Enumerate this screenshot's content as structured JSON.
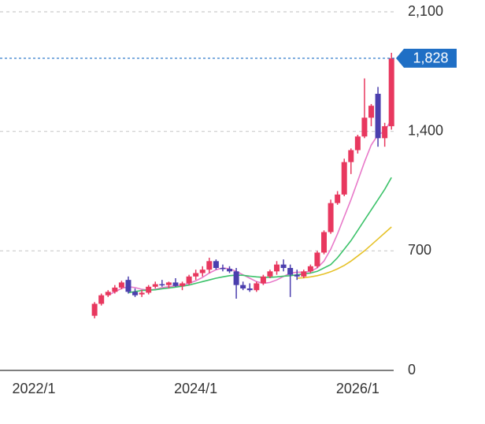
{
  "chart_data": {
    "type": "candlestick",
    "categories": [
      "2022/10",
      "2022/11",
      "2022/12",
      "2023/1",
      "2023/2",
      "2023/3",
      "2023/4",
      "2023/5",
      "2023/6",
      "2023/7",
      "2023/8",
      "2023/9",
      "2023/10",
      "2023/11",
      "2023/12",
      "2024/1",
      "2024/2",
      "2024/3",
      "2024/4",
      "2024/5",
      "2024/6",
      "2024/7",
      "2024/8",
      "2024/9",
      "2024/10",
      "2024/11",
      "2024/12",
      "2025/1",
      "2025/2",
      "2025/3",
      "2025/4",
      "2025/5",
      "2025/6",
      "2025/7",
      "2025/8",
      "2025/9",
      "2025/10",
      "2025/11",
      "2025/12",
      "2026/1",
      "2026/2",
      "2026/3",
      "2026/4",
      "2026/5",
      "2026/6"
    ],
    "open": [
      320,
      390,
      440,
      460,
      485,
      530,
      460,
      445,
      455,
      490,
      505,
      500,
      515,
      495,
      510,
      550,
      570,
      590,
      640,
      600,
      595,
      580,
      500,
      480,
      470,
      510,
      550,
      580,
      620,
      600,
      560,
      550,
      580,
      610,
      690,
      810,
      980,
      1030,
      1220,
      1290,
      1370,
      1480,
      1620,
      1360,
      1430
    ],
    "high": [
      400,
      450,
      470,
      500,
      525,
      550,
      480,
      470,
      500,
      520,
      530,
      520,
      540,
      520,
      560,
      590,
      610,
      660,
      650,
      620,
      610,
      600,
      520,
      510,
      520,
      560,
      590,
      640,
      650,
      620,
      590,
      590,
      620,
      700,
      820,
      1000,
      1050,
      1240,
      1300,
      1380,
      1710,
      1560,
      1660,
      1450,
      1860
    ],
    "low": [
      305,
      380,
      430,
      450,
      475,
      450,
      430,
      430,
      445,
      480,
      490,
      480,
      490,
      470,
      500,
      530,
      550,
      570,
      590,
      580,
      570,
      420,
      470,
      460,
      460,
      500,
      540,
      560,
      580,
      430,
      530,
      540,
      570,
      600,
      680,
      800,
      970,
      1020,
      1150,
      1270,
      1360,
      1430,
      1310,
      1310,
      1410
    ],
    "close": [
      390,
      440,
      460,
      485,
      515,
      460,
      440,
      455,
      490,
      505,
      500,
      515,
      495,
      510,
      550,
      570,
      590,
      640,
      600,
      595,
      580,
      500,
      480,
      470,
      510,
      550,
      580,
      620,
      600,
      560,
      550,
      580,
      610,
      690,
      810,
      980,
      1030,
      1220,
      1290,
      1370,
      1480,
      1550,
      1360,
      1430,
      1828
    ],
    "up_color": "#e8385f",
    "down_color": "#4b3fae",
    "series": [
      {
        "color": "#e879c9",
        "values": [
          null,
          null,
          440,
          460,
          480,
          490,
          485,
          475,
          470,
          475,
          485,
          490,
          495,
          500,
          510,
          525,
          545,
          570,
          590,
          600,
          595,
          580,
          560,
          540,
          520,
          510,
          515,
          530,
          550,
          570,
          575,
          575,
          580,
          600,
          640,
          710,
          800,
          900,
          1000,
          1110,
          1220,
          1320,
          1380,
          1400,
          1470
        ]
      },
      {
        "color": "#3cc26a",
        "values": [
          null,
          null,
          null,
          null,
          null,
          455,
          462,
          468,
          470,
          472,
          478,
          483,
          488,
          493,
          500,
          510,
          520,
          530,
          540,
          548,
          555,
          558,
          557,
          552,
          548,
          545,
          545,
          548,
          552,
          555,
          560,
          565,
          570,
          580,
          600,
          620,
          660,
          710,
          760,
          820,
          880,
          940,
          1000,
          1060,
          1130
        ]
      },
      {
        "color": "#e6c229",
        "values": [
          null,
          null,
          null,
          null,
          null,
          null,
          null,
          null,
          null,
          null,
          null,
          null,
          null,
          null,
          null,
          null,
          null,
          null,
          null,
          null,
          null,
          null,
          null,
          null,
          null,
          null,
          null,
          null,
          null,
          null,
          540,
          543,
          548,
          555,
          565,
          578,
          595,
          615,
          640,
          670,
          700,
          735,
          770,
          805,
          840
        ]
      }
    ],
    "xticks": [
      "2022/1",
      "2024/1",
      "2026/1"
    ],
    "ylim": [
      0,
      2100
    ],
    "yticks": [
      0,
      700,
      {
        "value": 1400,
        "label": "1,400"
      },
      {
        "value": 2100,
        "label": "2,100"
      }
    ],
    "grid": true,
    "last_label": {
      "value": 1828,
      "label": "1,828",
      "color": "#1f6fc5"
    }
  }
}
